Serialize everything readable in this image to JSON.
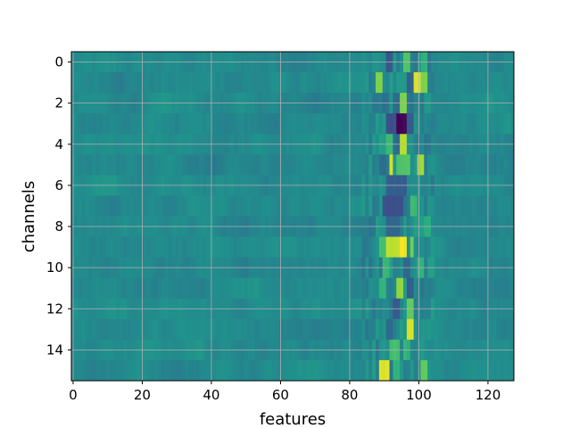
{
  "chart_data": {
    "type": "heatmap",
    "title": "",
    "xlabel": "features",
    "ylabel": "channels",
    "xlim": [
      -0.5,
      127.5
    ],
    "ylim": [
      15.5,
      -0.5
    ],
    "y_inverted": true,
    "grid": true,
    "grid_color": "#b0b0b0",
    "colormap": "viridis",
    "background_color": "#2f7f8d",
    "x_ticks": [
      0,
      20,
      40,
      60,
      80,
      100,
      120
    ],
    "x_tick_labels": [
      "0",
      "20",
      "40",
      "60",
      "80",
      "100",
      "120"
    ],
    "y_ticks": [
      0,
      2,
      4,
      6,
      8,
      10,
      12,
      14
    ],
    "y_tick_labels": [
      "0",
      "2",
      "4",
      "6",
      "8",
      "10",
      "12",
      "14"
    ],
    "n_rows": 16,
    "n_cols": 128,
    "value_range": [
      -1,
      1
    ],
    "baseline_value": -0.05,
    "noise_amplitude": 0.09,
    "active_band": [
      84,
      104
    ],
    "features": [
      {
        "channel": 0,
        "col_start": 91,
        "col_end": 92,
        "value": -0.45
      },
      {
        "channel": 0,
        "col_start": 96,
        "col_end": 97,
        "value": 0.45
      },
      {
        "channel": 0,
        "col_start": 101,
        "col_end": 102,
        "value": 0.3
      },
      {
        "channel": 1,
        "col_start": 88,
        "col_end": 89,
        "value": 0.6
      },
      {
        "channel": 1,
        "col_start": 99,
        "col_end": 100,
        "value": 0.92
      },
      {
        "channel": 1,
        "col_start": 101,
        "col_end": 102,
        "value": 0.6
      },
      {
        "channel": 1,
        "col_start": 97,
        "col_end": 98,
        "value": -0.35
      },
      {
        "channel": 2,
        "col_start": 95,
        "col_end": 96,
        "value": 0.6
      },
      {
        "channel": 2,
        "col_start": 93,
        "col_end": 94,
        "value": -0.3
      },
      {
        "channel": 2,
        "col_start": 98,
        "col_end": 98,
        "value": -0.25
      },
      {
        "channel": 3,
        "col_start": 94,
        "col_end": 96,
        "value": -0.98
      },
      {
        "channel": 3,
        "col_start": 91,
        "col_end": 93,
        "value": -0.5
      },
      {
        "channel": 3,
        "col_start": 97,
        "col_end": 98,
        "value": -0.45
      },
      {
        "channel": 4,
        "col_start": 95,
        "col_end": 96,
        "value": 0.8
      },
      {
        "channel": 4,
        "col_start": 91,
        "col_end": 92,
        "value": 0.35
      },
      {
        "channel": 4,
        "col_start": 93,
        "col_end": 94,
        "value": -0.3
      },
      {
        "channel": 5,
        "col_start": 92,
        "col_end": 92,
        "value": 0.85
      },
      {
        "channel": 5,
        "col_start": 94,
        "col_end": 97,
        "value": 0.45
      },
      {
        "channel": 5,
        "col_start": 100,
        "col_end": 101,
        "value": 0.7
      },
      {
        "channel": 5,
        "col_start": 89,
        "col_end": 90,
        "value": -0.3
      },
      {
        "channel": 6,
        "col_start": 91,
        "col_end": 96,
        "value": -0.4
      },
      {
        "channel": 7,
        "col_start": 90,
        "col_end": 95,
        "value": -0.5
      },
      {
        "channel": 7,
        "col_start": 98,
        "col_end": 99,
        "value": 0.35
      },
      {
        "channel": 8,
        "col_start": 91,
        "col_end": 94,
        "value": -0.35
      },
      {
        "channel": 8,
        "col_start": 102,
        "col_end": 103,
        "value": 0.25
      },
      {
        "channel": 9,
        "col_start": 95,
        "col_end": 96,
        "value": 0.95
      },
      {
        "channel": 9,
        "col_start": 91,
        "col_end": 94,
        "value": 0.8
      },
      {
        "channel": 9,
        "col_start": 98,
        "col_end": 98,
        "value": 0.55
      },
      {
        "channel": 9,
        "col_start": 89,
        "col_end": 90,
        "value": 0.4
      },
      {
        "channel": 10,
        "col_start": 90,
        "col_end": 91,
        "value": 0.35
      },
      {
        "channel": 10,
        "col_start": 96,
        "col_end": 97,
        "value": -0.35
      },
      {
        "channel": 10,
        "col_start": 100,
        "col_end": 101,
        "value": 0.3
      },
      {
        "channel": 11,
        "col_start": 94,
        "col_end": 95,
        "value": 0.65
      },
      {
        "channel": 11,
        "col_start": 97,
        "col_end": 98,
        "value": -0.4
      },
      {
        "channel": 11,
        "col_start": 89,
        "col_end": 90,
        "value": 0.3
      },
      {
        "channel": 12,
        "col_start": 93,
        "col_end": 94,
        "value": -0.4
      },
      {
        "channel": 12,
        "col_start": 97,
        "col_end": 98,
        "value": 0.5
      },
      {
        "channel": 13,
        "col_start": 97,
        "col_end": 98,
        "value": 0.9
      },
      {
        "channel": 13,
        "col_start": 91,
        "col_end": 92,
        "value": -0.3
      },
      {
        "channel": 14,
        "col_start": 92,
        "col_end": 94,
        "value": 0.4
      },
      {
        "channel": 14,
        "col_start": 96,
        "col_end": 97,
        "value": 0.3
      },
      {
        "channel": 15,
        "col_start": 89,
        "col_end": 91,
        "value": 0.9
      },
      {
        "channel": 15,
        "col_start": 93,
        "col_end": 94,
        "value": 0.3
      },
      {
        "channel": 15,
        "col_start": 101,
        "col_end": 102,
        "value": 0.5
      }
    ]
  }
}
